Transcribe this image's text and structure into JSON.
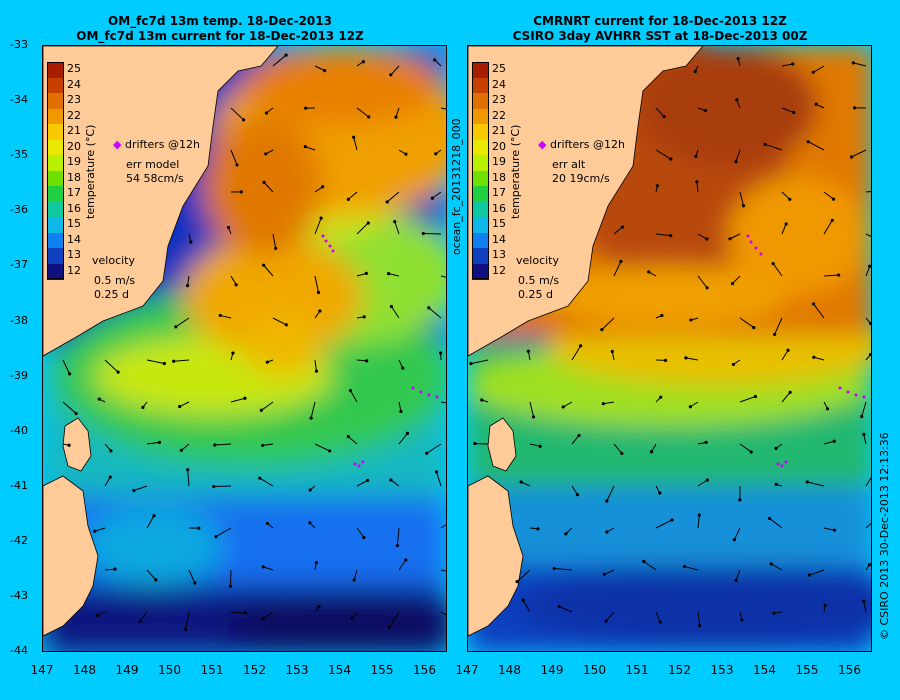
{
  "panels": [
    {
      "title1": "OM_fc7d 13m temp. 18-Dec-2013",
      "title2": "OM_fc7d 13m current for 18-Dec-2013 12Z",
      "legend_drifters": "drifters @12h",
      "err_label": "err model",
      "err_value": "54 58cm/s",
      "velocity_label": "velocity",
      "velocity_scale1": "0.5 m/s",
      "velocity_scale2": "0.25 d",
      "colorbar_title": "temperature (°C)"
    },
    {
      "title1": "CMRNRT current for 18-Dec-2013 12Z",
      "title2": "CSIRO 3day AVHRR SST at 18-Dec-2013 00Z",
      "legend_drifters": "drifters @12h",
      "err_label": "err alt",
      "err_value": "20 19cm/s",
      "velocity_label": "velocity",
      "velocity_scale1": "0.5 m/s",
      "velocity_scale2": "0.25 d",
      "colorbar_title": "temperature (°C)"
    }
  ],
  "colorbar_ticks": [
    "25",
    "24",
    "23",
    "22",
    "21",
    "20",
    "19",
    "18",
    "17",
    "16",
    "15",
    "14",
    "13",
    "12"
  ],
  "colorbar_colors": [
    "#a81c00",
    "#c84000",
    "#e07000",
    "#f09800",
    "#f8c800",
    "#e8e800",
    "#b8f000",
    "#70e000",
    "#20d040",
    "#10c8a0",
    "#10b8e8",
    "#1080f0",
    "#1040c0",
    "#101080"
  ],
  "lat_ticks": [
    "-33",
    "-34",
    "-35",
    "-36",
    "-37",
    "-38",
    "-39",
    "-40",
    "-41",
    "-42",
    "-43",
    "-44"
  ],
  "lon_ticks": [
    "147",
    "148",
    "149",
    "150",
    "151",
    "152",
    "153",
    "154",
    "155",
    "156"
  ],
  "side_label_left": "ocean_fc_20131218_000",
  "side_label_right": "© CSIRO 2013   30-Dec-2013 12:13:36",
  "colors": {
    "background": "#00ccff",
    "land": "#ffcc99",
    "drifter": "#cc00ff"
  }
}
